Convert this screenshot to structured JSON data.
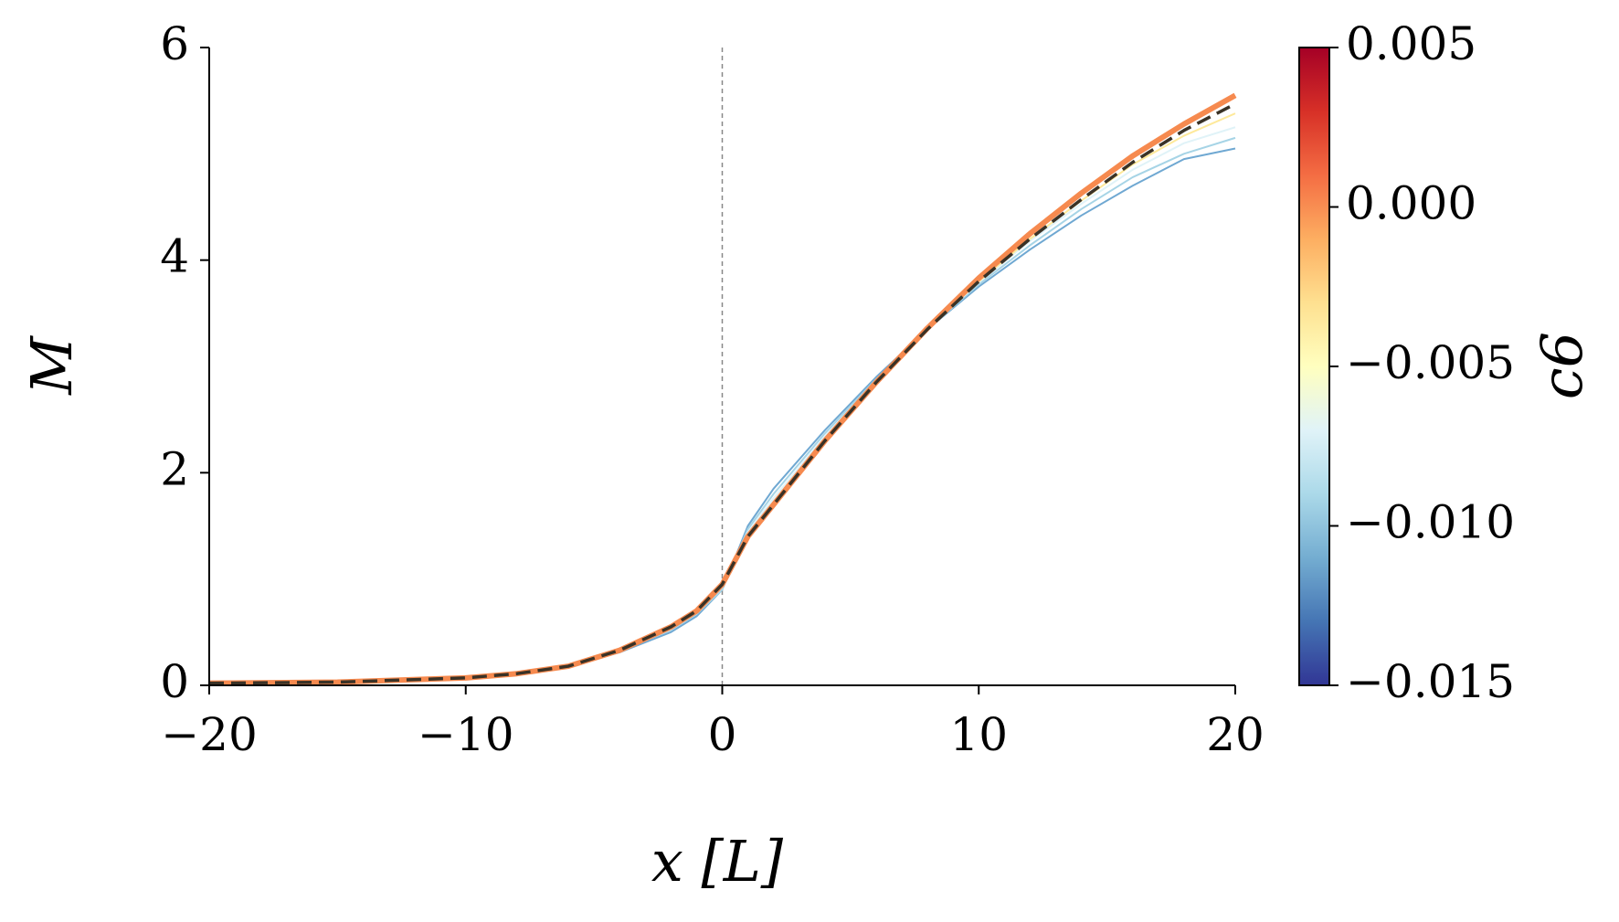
{
  "chart_data": {
    "type": "line",
    "xlabel": "x [L]",
    "ylabel": "M",
    "x": [
      -20,
      -15,
      -10,
      -8,
      -6,
      -4,
      -2,
      -1,
      0,
      1,
      2,
      4,
      6,
      8,
      10,
      12,
      14,
      16,
      18,
      20
    ],
    "series": [
      {
        "color": "#6fa8d2",
        "linewidth": 2,
        "values": [
          0.02,
          0.03,
          0.07,
          0.11,
          0.18,
          0.31,
          0.5,
          0.65,
          0.9,
          1.5,
          1.85,
          2.4,
          2.9,
          3.35,
          3.75,
          4.1,
          4.42,
          4.7,
          4.95,
          5.05
        ]
      },
      {
        "color": "#a6d4e6",
        "linewidth": 2,
        "values": [
          0.02,
          0.03,
          0.07,
          0.11,
          0.18,
          0.32,
          0.52,
          0.67,
          0.9,
          1.47,
          1.8,
          2.37,
          2.88,
          3.35,
          3.77,
          4.14,
          4.48,
          4.78,
          5.0,
          5.15
        ]
      },
      {
        "color": "#e0f3f8",
        "linewidth": 2,
        "values": [
          0.02,
          0.03,
          0.07,
          0.11,
          0.18,
          0.32,
          0.53,
          0.68,
          0.92,
          1.44,
          1.76,
          2.34,
          2.87,
          3.35,
          3.79,
          4.18,
          4.53,
          4.85,
          5.1,
          5.25
        ]
      },
      {
        "color": "#fee99a",
        "linewidth": 2,
        "values": [
          0.02,
          0.03,
          0.07,
          0.11,
          0.18,
          0.33,
          0.54,
          0.69,
          0.93,
          1.41,
          1.72,
          2.31,
          2.86,
          3.35,
          3.8,
          4.2,
          4.56,
          4.9,
          5.17,
          5.38
        ]
      },
      {
        "color": "#f68a4f",
        "linewidth": 6,
        "values": [
          0.02,
          0.03,
          0.07,
          0.11,
          0.18,
          0.33,
          0.55,
          0.7,
          0.95,
          1.4,
          1.7,
          2.3,
          2.85,
          3.36,
          3.83,
          4.25,
          4.63,
          4.98,
          5.28,
          5.55
        ]
      },
      {
        "color": "#3a3226",
        "linewidth": 3.5,
        "linestyle": "dashed",
        "values": [
          0.02,
          0.03,
          0.07,
          0.11,
          0.18,
          0.33,
          0.55,
          0.7,
          0.95,
          1.4,
          1.7,
          2.3,
          2.85,
          3.35,
          3.8,
          4.2,
          4.57,
          4.92,
          5.22,
          5.47
        ]
      }
    ],
    "vline": 0,
    "xlim": [
      -20,
      20
    ],
    "xticks": [
      {
        "value": -20,
        "label": "−20"
      },
      {
        "value": -10,
        "label": "−10"
      },
      0,
      10,
      20
    ],
    "ylim": [
      0,
      6
    ],
    "yticks": [
      0,
      2,
      4,
      6
    ],
    "colorbar": {
      "label": "c6",
      "clim": [
        -0.015,
        0.005
      ],
      "ticks": [
        0.005,
        {
          "value": 0,
          "label": "0.000"
        },
        {
          "value": -0.005,
          "label": "−0.005"
        },
        {
          "value": -0.01,
          "label": "−0.010"
        },
        {
          "value": -0.015,
          "label": "−0.015"
        }
      ],
      "colors": [
        "#313695",
        "#4575b4",
        "#74add1",
        "#abd9e9",
        "#e0f3f8",
        "#ffffbf",
        "#fee090",
        "#fdae61",
        "#f46d43",
        "#d73027",
        "#a50026"
      ]
    }
  }
}
